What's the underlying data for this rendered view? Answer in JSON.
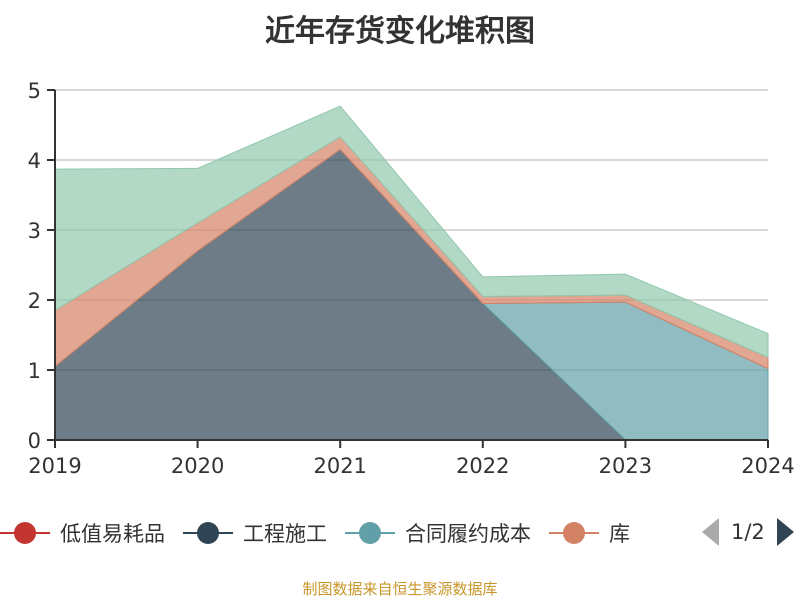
{
  "chart_data": {
    "type": "area",
    "stacked": true,
    "title": "近年存货变化堆积图",
    "x": [
      "2019",
      "2020",
      "2021",
      "2022",
      "2023",
      "2024"
    ],
    "ylim": [
      0,
      5
    ],
    "yticks": [
      "0",
      "1",
      "2",
      "3",
      "4",
      "5"
    ],
    "grid": true,
    "legend_position": "bottom",
    "series": [
      {
        "name": "工程施工",
        "color": "#2f4554",
        "values": [
          1.05,
          2.7,
          4.15,
          1.95,
          0,
          0
        ]
      },
      {
        "name": "合同履约成本",
        "color": "#61a0a8",
        "values": [
          0,
          0,
          0,
          0,
          1.97,
          1.02
        ]
      },
      {
        "name": "低值易耗品",
        "color": "#c23531",
        "values": [
          0,
          0,
          0,
          0,
          0,
          0
        ]
      },
      {
        "name": "库",
        "color": "#d48265",
        "values": [
          0.8,
          0.4,
          0.18,
          0.1,
          0.1,
          0.16
        ]
      },
      {
        "name": "",
        "color": "#91c7ae",
        "values": [
          2.02,
          0.78,
          0.44,
          0.28,
          0.3,
          0.34
        ]
      }
    ]
  },
  "legend": {
    "items": [
      {
        "label": "低值易耗品",
        "color": "#c23531"
      },
      {
        "label": "工程施工",
        "color": "#2f4554"
      },
      {
        "label": "合同履约成本",
        "color": "#61a0a8"
      },
      {
        "label": "库",
        "color": "#d48265"
      }
    ],
    "page": "1/2"
  },
  "source": "制图数据来自恒生聚源数据库"
}
